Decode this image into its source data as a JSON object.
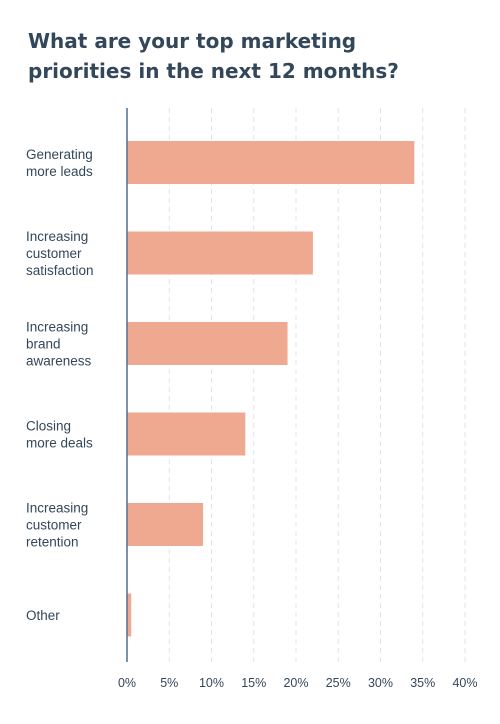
{
  "title": "What are your top marketing\npriorities in the next 12 months?",
  "colors": {
    "bar": "#f0a991",
    "axis": "#516f90",
    "grid": "#dfe3eb",
    "text": "#33475b"
  },
  "chart_data": {
    "type": "bar",
    "orientation": "horizontal",
    "title": "What are your top marketing priorities in the next 12 months?",
    "categories": [
      [
        "Generating",
        "more leads"
      ],
      [
        "Increasing",
        "customer",
        "satisfaction"
      ],
      [
        "Increasing",
        "brand",
        "awareness"
      ],
      [
        "Closing",
        "more deals"
      ],
      [
        "Increasing",
        "customer",
        "retention"
      ],
      [
        "Other"
      ]
    ],
    "values": [
      34,
      22,
      19,
      14,
      9,
      0.5
    ],
    "unit": "%",
    "xticks": [
      "0%",
      "5%",
      "10%",
      "15%",
      "20%",
      "25%",
      "30%",
      "35%",
      "40%"
    ],
    "xlim": [
      0,
      40
    ],
    "grid": "vertical dashed",
    "legend": "none"
  }
}
